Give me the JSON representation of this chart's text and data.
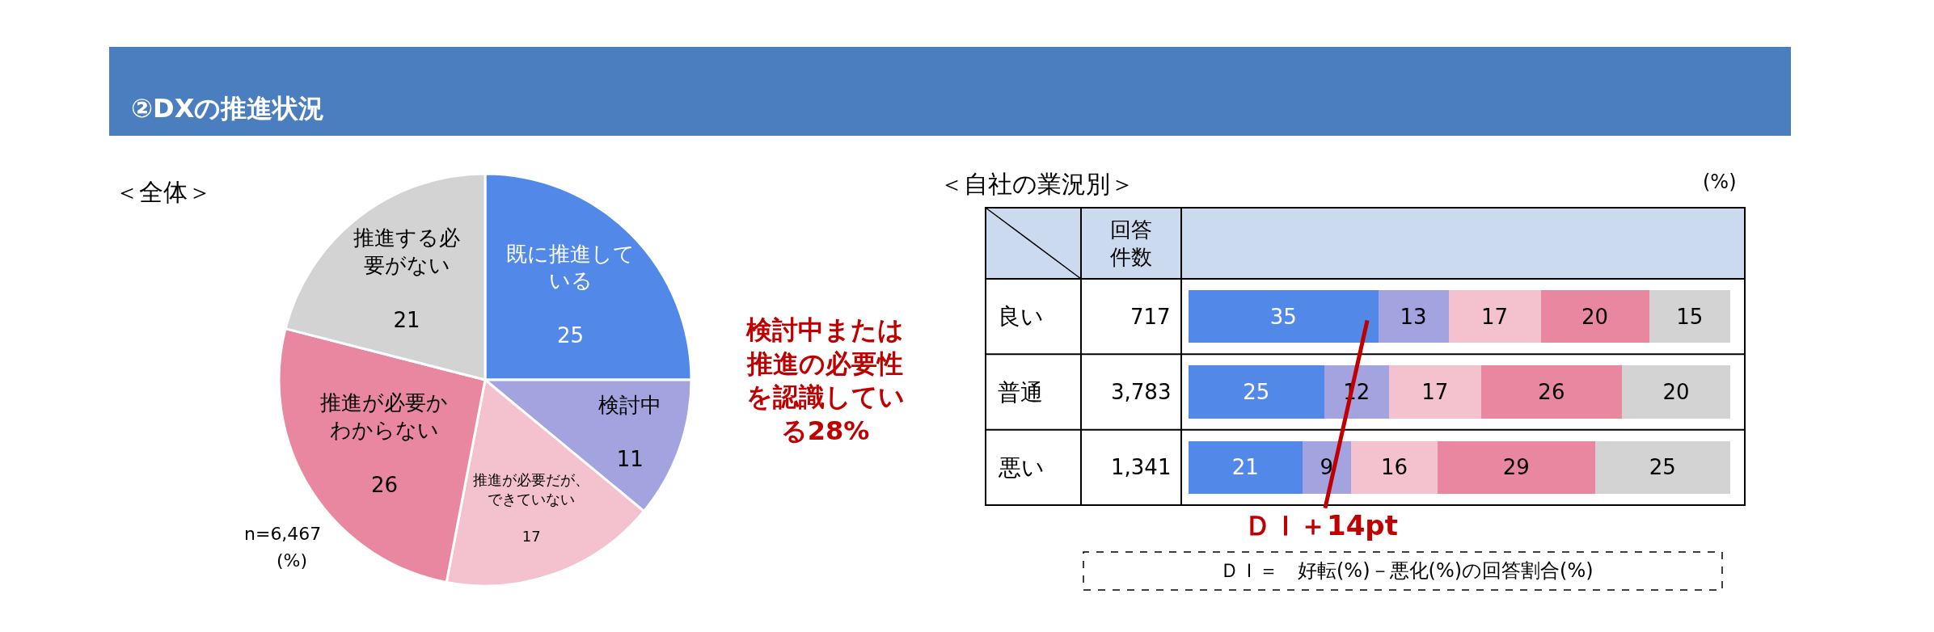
{
  "chart_data": [
    {
      "type": "pie",
      "title": "②DXの推進状況",
      "subtitle": "＜全体＞",
      "categories": [
        "既に推進している",
        "検討中",
        "推進が必要だが、できていない",
        "推進が必要かわからない",
        "推進する必要がない"
      ],
      "data_labels": true,
      "values": [
        25,
        11,
        17,
        26,
        21
      ],
      "colors": [
        "#5288e8",
        "#a3a3e0",
        "#f4c2cf",
        "#e8879f",
        "#d3d3d3"
      ],
      "annotations": [
        "検討中または推進の必要性を認識している28%",
        "n=6,467",
        "(%)"
      ]
    },
    {
      "type": "bar",
      "title": "＜自社の業況別＞",
      "orientation": "horizontal",
      "stacked": true,
      "data_labels": true,
      "tick_labels": false,
      "categories": [
        "良い",
        "普通",
        "悪い"
      ],
      "xlim": [
        0,
        100
      ],
      "series": [
        {
          "color": "#5288e8",
          "values": [
            35,
            25,
            21
          ]
        },
        {
          "color": "#a3a3e0",
          "values": [
            13,
            12,
            9
          ]
        },
        {
          "color": "#f4c2cf",
          "values": [
            17,
            17,
            16
          ]
        },
        {
          "color": "#e8879f",
          "values": [
            20,
            26,
            29
          ]
        },
        {
          "color": "#d3d3d3",
          "values": [
            15,
            20,
            25
          ]
        }
      ],
      "annotations": [
        "(%)",
        "回答件数",
        "717",
        "3,783",
        "1,341",
        "ＤＩ＋14pt",
        "ＤＩ＝　好転(%)－悪化(%)の回答割合(%)"
      ]
    }
  ]
}
